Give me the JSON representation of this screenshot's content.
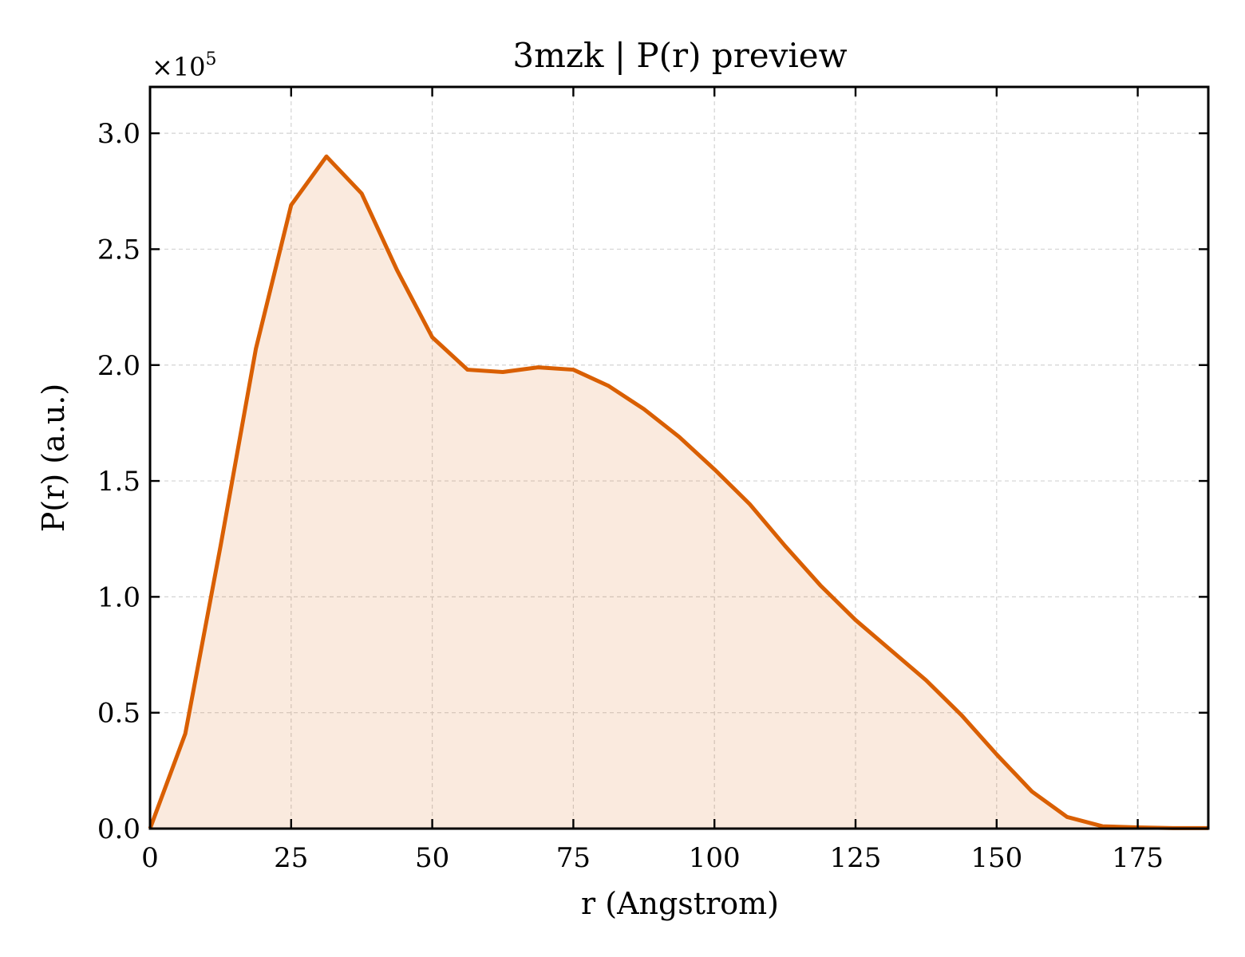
{
  "chart_data": {
    "type": "area",
    "title": "3mzk | P(r) preview",
    "xlabel": "r (Angstrom)",
    "ylabel": "P(r) (a.u.)",
    "y_multiplier_label": "×10",
    "y_multiplier_exponent": "5",
    "xlim": [
      0,
      187.5
    ],
    "ylim": [
      0,
      3.2
    ],
    "xticks": [
      0,
      25,
      50,
      75,
      100,
      125,
      150,
      175
    ],
    "xtick_labels": [
      "0",
      "25",
      "50",
      "75",
      "100",
      "125",
      "150",
      "175"
    ],
    "yticks": [
      0,
      0.5,
      1.0,
      1.5,
      2.0,
      2.5,
      3.0
    ],
    "ytick_labels": [
      "0.0",
      "0.5",
      "1.0",
      "1.5",
      "2.0",
      "2.5",
      "3.0"
    ],
    "grid": true,
    "line_color": "#d95f02",
    "fill_color": "#d95f02",
    "series": [
      {
        "x": [
          0,
          6.25,
          12.5,
          18.75,
          25,
          31.25,
          37.5,
          43.75,
          50,
          56.25,
          62.5,
          68.75,
          75,
          81.25,
          87.5,
          93.75,
          100,
          106.25,
          112.5,
          118.75,
          125,
          131.25,
          137.5,
          143.75,
          150,
          156.25,
          162.5,
          168.75,
          175,
          181.25,
          187.5
        ],
        "y": [
          0,
          0.41,
          1.22,
          2.07,
          2.69,
          2.9,
          2.74,
          2.41,
          2.12,
          1.98,
          1.97,
          1.99,
          1.98,
          1.91,
          1.81,
          1.69,
          1.55,
          1.4,
          1.22,
          1.05,
          0.9,
          0.77,
          0.64,
          0.49,
          0.32,
          0.16,
          0.05,
          0.01,
          0.005,
          0.002,
          0.002
        ]
      }
    ]
  }
}
